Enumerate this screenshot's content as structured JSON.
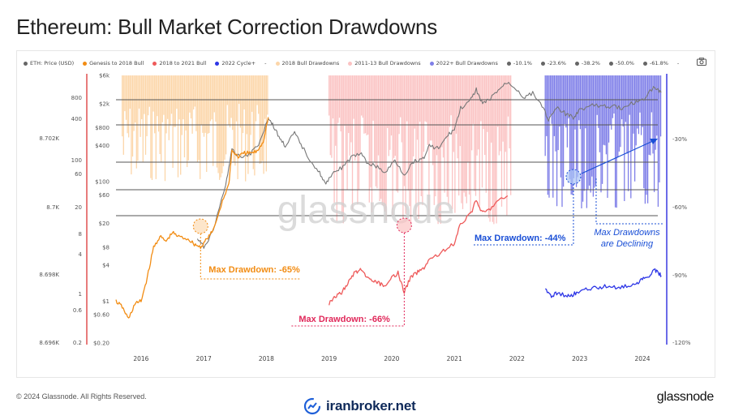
{
  "title": "Ethereum: Bull Market Correction Drawdowns",
  "legend": [
    {
      "label": "ETH: Price (USD)",
      "color": "#666666"
    },
    {
      "label": "Genesis to 2018 Bull",
      "color": "#f28c13"
    },
    {
      "label": "2018 to 2021 Bull",
      "color": "#ee5a5a"
    },
    {
      "label": "2022 Cycle+",
      "color": "#2d36e6"
    },
    {
      "label": "-",
      "color": ""
    },
    {
      "label": "2018 Bull Drawdowns",
      "color": "#fcd6a9"
    },
    {
      "label": "2011-13 Bull Drawdowns",
      "color": "#fbc3c3"
    },
    {
      "label": "2022+ Bull Drawdowns",
      "color": "#7f7fe8"
    },
    {
      "label": "-10.1%",
      "color": "#666666"
    },
    {
      "label": "-23.6%",
      "color": "#666666"
    },
    {
      "label": "-38.2%",
      "color": "#666666"
    },
    {
      "label": "-50.0%",
      "color": "#666666"
    },
    {
      "label": "-61.8%",
      "color": "#666666"
    },
    {
      "label": "-",
      "color": ""
    }
  ],
  "footer": {
    "copyright": "© 2024 Glassnode. All Rights Reserved.",
    "brand_right": "glassnode",
    "brand_center": "iranbroker.net"
  },
  "chart_data": {
    "type": "line",
    "x_axis": {
      "ticks": [
        "2016",
        "2017",
        "2018",
        "2019",
        "2020",
        "2021",
        "2022",
        "2023",
        "2024"
      ]
    },
    "y_axis_outer": {
      "ticks": [
        "8.702K",
        "8.7K",
        "8.698K",
        "8.696K"
      ]
    },
    "y_axis_left": {
      "ticks": [
        "800",
        "400",
        "100",
        "60",
        "20",
        "8",
        "4",
        "1",
        "0.6",
        "0.2"
      ]
    },
    "y_axis_price": {
      "scale": "log",
      "ticks": [
        "$6k",
        "$2k",
        "$800",
        "$400",
        "$100",
        "$60",
        "$20",
        "$8",
        "$4",
        "$1",
        "$0.60",
        "$0.20"
      ]
    },
    "y_axis_right": {
      "ticks": [
        "-30%",
        "-60%",
        "-90%",
        "-120%"
      ]
    },
    "fib_levels_pct": [
      -10.1,
      -23.6,
      -38.2,
      -50.0,
      -61.8
    ],
    "watermark": "glassnode",
    "series": [
      {
        "name": "ETH: Price (USD)",
        "color": "#777777",
        "points": [
          [
            2016.9,
            11
          ],
          [
            2017.0,
            8
          ],
          [
            2017.15,
            15
          ],
          [
            2017.35,
            90
          ],
          [
            2017.45,
            330
          ],
          [
            2017.6,
            260
          ],
          [
            2017.75,
            300
          ],
          [
            2017.9,
            470
          ],
          [
            2018.03,
            1200
          ],
          [
            2018.1,
            900
          ],
          [
            2018.2,
            560
          ],
          [
            2018.3,
            400
          ],
          [
            2018.45,
            650
          ],
          [
            2018.55,
            420
          ],
          [
            2018.7,
            230
          ],
          [
            2018.85,
            140
          ],
          [
            2018.95,
            88
          ],
          [
            2019.05,
            140
          ],
          [
            2019.2,
            170
          ],
          [
            2019.35,
            250
          ],
          [
            2019.5,
            300
          ],
          [
            2019.6,
            210
          ],
          [
            2019.75,
            180
          ],
          [
            2019.9,
            140
          ],
          [
            2020.05,
            230
          ],
          [
            2020.2,
            130
          ],
          [
            2020.35,
            220
          ],
          [
            2020.5,
            240
          ],
          [
            2020.6,
            400
          ],
          [
            2020.75,
            360
          ],
          [
            2020.9,
            600
          ],
          [
            2021.0,
            750
          ],
          [
            2021.1,
            1700
          ],
          [
            2021.25,
            2200
          ],
          [
            2021.35,
            3500
          ],
          [
            2021.45,
            2000
          ],
          [
            2021.55,
            2300
          ],
          [
            2021.7,
            3400
          ],
          [
            2021.85,
            4600
          ],
          [
            2021.95,
            3900
          ],
          [
            2022.1,
            2600
          ],
          [
            2022.25,
            3000
          ],
          [
            2022.4,
            1900
          ],
          [
            2022.5,
            1100
          ],
          [
            2022.65,
            1700
          ],
          [
            2022.8,
            1300
          ],
          [
            2022.9,
            1200
          ],
          [
            2023.0,
            1600
          ],
          [
            2023.2,
            1900
          ],
          [
            2023.4,
            1800
          ],
          [
            2023.55,
            1850
          ],
          [
            2023.7,
            1650
          ],
          [
            2023.85,
            2100
          ],
          [
            2024.0,
            2300
          ],
          [
            2024.15,
            3500
          ],
          [
            2024.2,
            3900
          ],
          [
            2024.3,
            3100
          ]
        ]
      },
      {
        "name": "Genesis to 2018 Bull",
        "color": "#f28c13",
        "points": [
          [
            2015.6,
            1.0
          ],
          [
            2015.7,
            0.8
          ],
          [
            2015.8,
            0.5
          ],
          [
            2015.9,
            0.9
          ],
          [
            2016.0,
            1.0
          ],
          [
            2016.1,
            2.5
          ],
          [
            2016.2,
            8
          ],
          [
            2016.3,
            12
          ],
          [
            2016.4,
            10
          ],
          [
            2016.5,
            14
          ],
          [
            2016.6,
            12
          ],
          [
            2016.75,
            11
          ],
          [
            2016.85,
            9
          ],
          [
            2016.95,
            8
          ],
          [
            2017.05,
            11
          ],
          [
            2017.15,
            15
          ],
          [
            2017.3,
            48
          ],
          [
            2017.4,
            90
          ],
          [
            2017.45,
            330
          ],
          [
            2017.55,
            260
          ],
          [
            2017.65,
            300
          ],
          [
            2017.75,
            300
          ],
          [
            2017.85,
            320
          ],
          [
            2017.95,
            470
          ],
          [
            2018.03,
            1200
          ]
        ]
      },
      {
        "name": "2018 to 2021 Bull",
        "color": "#ee5a5a",
        "points": [
          [
            2019.0,
            0.9
          ],
          [
            2019.1,
            1.2
          ],
          [
            2019.2,
            1.4
          ],
          [
            2019.3,
            2.0
          ],
          [
            2019.4,
            3.0
          ],
          [
            2019.5,
            3.3
          ],
          [
            2019.6,
            2.5
          ],
          [
            2019.7,
            2.2
          ],
          [
            2019.8,
            2.0
          ],
          [
            2019.9,
            1.7
          ],
          [
            2020.0,
            2.4
          ],
          [
            2020.1,
            3.0
          ],
          [
            2020.2,
            1.4
          ],
          [
            2020.3,
            2.5
          ],
          [
            2020.4,
            3.0
          ],
          [
            2020.5,
            3.5
          ],
          [
            2020.6,
            5
          ],
          [
            2020.75,
            6
          ],
          [
            2020.9,
            8
          ],
          [
            2021.0,
            9
          ],
          [
            2021.1,
            20
          ],
          [
            2021.25,
            28
          ],
          [
            2021.35,
            48
          ],
          [
            2021.45,
            30
          ],
          [
            2021.55,
            34
          ],
          [
            2021.7,
            48
          ],
          [
            2021.85,
            58
          ]
        ]
      },
      {
        "name": "2022 Cycle+",
        "color": "#2d36e6",
        "points": [
          [
            2022.45,
            1.6
          ],
          [
            2022.55,
            1.2
          ],
          [
            2022.65,
            1.4
          ],
          [
            2022.8,
            1.2
          ],
          [
            2022.9,
            1.3
          ],
          [
            2023.0,
            1.5
          ],
          [
            2023.15,
            1.6
          ],
          [
            2023.3,
            1.7
          ],
          [
            2023.45,
            1.8
          ],
          [
            2023.6,
            1.7
          ],
          [
            2023.75,
            1.8
          ],
          [
            2023.9,
            2.0
          ],
          [
            2024.0,
            2.3
          ],
          [
            2024.1,
            2.6
          ],
          [
            2024.18,
            3.4
          ],
          [
            2024.25,
            3.0
          ],
          [
            2024.3,
            2.7
          ]
        ]
      }
    ],
    "drawdown_areas": [
      {
        "name": "2018 Bull Drawdowns",
        "color": "#fcd6a9",
        "x_range": [
          2015.7,
          2018.03
        ]
      },
      {
        "name": "2011-13 Bull Drawdowns",
        "color": "#fbc3c3",
        "x_range": [
          2019.0,
          2021.9
        ]
      },
      {
        "name": "2022+ Bull Drawdowns",
        "color": "#7f7fe8",
        "x_range": [
          2022.45,
          2024.3
        ]
      }
    ],
    "annotations": [
      {
        "text": "Max Drawdown: -65%",
        "color": "#f28c13",
        "x": 2016.95,
        "drawdown_pct": -65
      },
      {
        "text": "Max Drawdown: -66%",
        "color": "#e0285a",
        "x": 2020.2,
        "drawdown_pct": -66
      },
      {
        "text": "Max Drawdown: -44%",
        "color": "#1a4fd6",
        "x": 2022.9,
        "drawdown_pct": -44
      },
      {
        "text": "Max Drawdowns",
        "color": "#1a4fd6"
      },
      {
        "text": "are Declining",
        "color": "#1a4fd6"
      }
    ]
  }
}
